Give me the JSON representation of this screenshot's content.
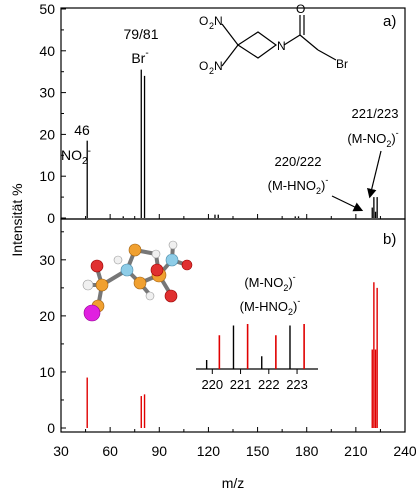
{
  "chart_data": [
    {
      "type": "bar",
      "panel": "a)",
      "ylabel": "Intensität %",
      "ylim": [
        0,
        50
      ],
      "xlim": [
        30,
        240
      ],
      "yticks": [
        0,
        10,
        20,
        30,
        40,
        50
      ],
      "series": [
        {
          "color": "#000000",
          "x": [
            46,
            68,
            79,
            81,
            124,
            126,
            173,
            175,
            220,
            221,
            222,
            223
          ],
          "y": [
            18.5,
            0.4,
            35.5,
            34,
            0.8,
            0.8,
            0.4,
            0.4,
            2.5,
            5,
            1.5,
            5
          ]
        }
      ],
      "annotations": [
        {
          "name": "no2",
          "line1": "46",
          "line2": "NO",
          "sub": "2",
          "sup": "-"
        },
        {
          "name": "br",
          "line1": "79/81",
          "line2": "Br",
          "sup": "-"
        },
        {
          "name": "m-hno2",
          "line1": "220/222",
          "line2a": "(M-HNO",
          "sub": "2",
          "line2b": ")",
          "sup": "-"
        },
        {
          "name": "m-no2",
          "line1": "221/223",
          "line2a": "(M-NO",
          "sub": "2",
          "line2b": ")",
          "sup": "-"
        }
      ],
      "molecule_labels": [
        "O",
        "O",
        "N",
        "N",
        "O",
        "O",
        "N",
        "O",
        "Br"
      ]
    },
    {
      "type": "bar",
      "panel": "b)",
      "ylabel": "Intensität %",
      "xlabel": "m/z",
      "ylim": [
        0,
        35
      ],
      "xlim": [
        30,
        240
      ],
      "yticks": [
        0,
        10,
        20,
        30
      ],
      "xticks": [
        30,
        60,
        90,
        120,
        150,
        180,
        210,
        240
      ],
      "series": [
        {
          "color": "#e00000",
          "x": [
            46,
            79,
            81,
            220,
            221,
            222,
            223
          ],
          "y": [
            9,
            5.7,
            6,
            14,
            26,
            14,
            25
          ]
        }
      ],
      "inset": {
        "xticks": [
          220,
          221,
          222,
          223
        ],
        "labels": [
          {
            "name": "m-no2",
            "text_a": "(M-NO",
            "sub": "2",
            "text_b": ")",
            "sup": "-"
          },
          {
            "name": "m-hno2",
            "text_a": "(M-HNO",
            "sub": "2",
            "text_b": ")",
            "sup": "-"
          }
        ],
        "series": [
          {
            "color": "#000000",
            "x": [
              219.8,
              220.75,
              221.75,
              222.75
            ],
            "y": [
              0.12,
              0.58,
              0.17,
              0.58
            ]
          },
          {
            "color": "#e00000",
            "x": [
              220.25,
              221.25,
              222.25,
              223.25
            ],
            "y": [
              0.45,
              0.6,
              0.45,
              0.6
            ]
          }
        ]
      }
    }
  ]
}
